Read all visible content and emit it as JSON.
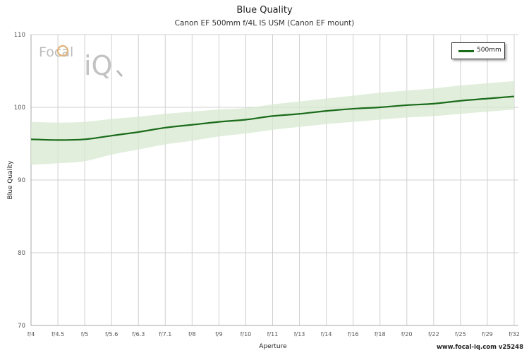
{
  "title": "Blue Quality",
  "subtitle": "Canon EF 500mm f/4L IS USM (Canon EF mount)",
  "footer": "www.focal-iq.com  v25248",
  "logo": {
    "text_left": "Focal",
    "text_right": "iQ"
  },
  "colors": {
    "line": "#1a6b1a",
    "band": "#d6e8cf",
    "grid": "#d0d0d0"
  },
  "chart_data": {
    "type": "line",
    "title": "Blue Quality",
    "subtitle": "Canon EF 500mm f/4L IS USM (Canon EF mount)",
    "xlabel": "Aperture",
    "ylabel": "Blue Quality",
    "ylim": [
      70,
      110
    ],
    "yticks": [
      70,
      80,
      90,
      100,
      110
    ],
    "categories": [
      "f/4",
      "f/4.5",
      "f/5",
      "f/5.6",
      "f/6.3",
      "f/7.1",
      "f/8",
      "f/9",
      "f/10",
      "f/11",
      "f/13",
      "f/14",
      "f/16",
      "f/18",
      "f/20",
      "f/22",
      "f/25",
      "f/29",
      "f/32"
    ],
    "grid": true,
    "legend": "top-right",
    "series": [
      {
        "name": "500mm",
        "values": [
          95.6,
          95.5,
          95.6,
          96.1,
          96.6,
          97.2,
          97.6,
          98.0,
          98.3,
          98.8,
          99.1,
          99.5,
          99.8,
          100.0,
          100.3,
          100.5,
          100.9,
          101.2,
          101.5
        ],
        "band_upper": [
          98.0,
          97.9,
          98.0,
          98.4,
          98.7,
          99.1,
          99.4,
          99.7,
          99.9,
          100.4,
          100.8,
          101.2,
          101.6,
          102.0,
          102.3,
          102.6,
          103.0,
          103.3,
          103.6
        ],
        "band_lower": [
          92.1,
          92.3,
          92.6,
          93.5,
          94.2,
          94.9,
          95.4,
          96.0,
          96.4,
          96.9,
          97.3,
          97.7,
          98.0,
          98.3,
          98.6,
          98.8,
          99.1,
          99.4,
          99.7
        ]
      }
    ]
  }
}
